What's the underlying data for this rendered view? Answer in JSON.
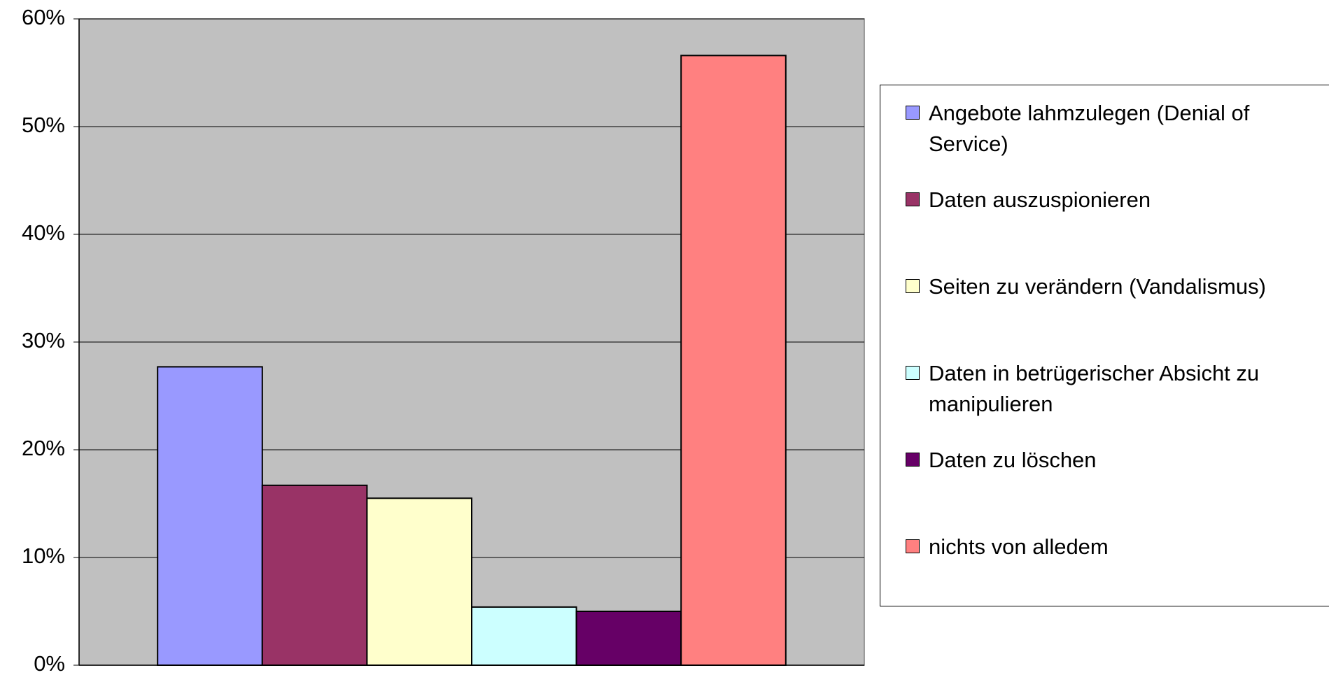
{
  "chart_data": {
    "type": "bar",
    "categories": [
      null
    ],
    "series": [
      {
        "name": "Angebote lahmzulegen (Denial of Service)",
        "color": "#9999ff",
        "values": [
          27.7
        ]
      },
      {
        "name": "Daten auszuspionieren",
        "color": "#993366",
        "values": [
          16.7
        ]
      },
      {
        "name": "Seiten zu verändern (Vandalismus)",
        "color": "#ffffcc",
        "values": [
          15.5
        ]
      },
      {
        "name": "Daten in betrügerischer Absicht zu manipulieren",
        "color": "#ccffff",
        "values": [
          5.4
        ]
      },
      {
        "name": "Daten zu löschen",
        "color": "#660066",
        "values": [
          5.0
        ]
      },
      {
        "name": "nichts von alledem",
        "color": "#ff8080",
        "values": [
          56.6
        ]
      }
    ],
    "ylim": [
      0,
      60
    ],
    "yticks": [
      {
        "value": 0,
        "label": "0%"
      },
      {
        "value": 10,
        "label": "10%"
      },
      {
        "value": 20,
        "label": "20%"
      },
      {
        "value": 30,
        "label": "30%"
      },
      {
        "value": 40,
        "label": "40%"
      },
      {
        "value": 50,
        "label": "50%"
      },
      {
        "value": 60,
        "label": "60%"
      }
    ],
    "grid": true,
    "plot_background": "#c0c0c0",
    "legend": "right"
  }
}
